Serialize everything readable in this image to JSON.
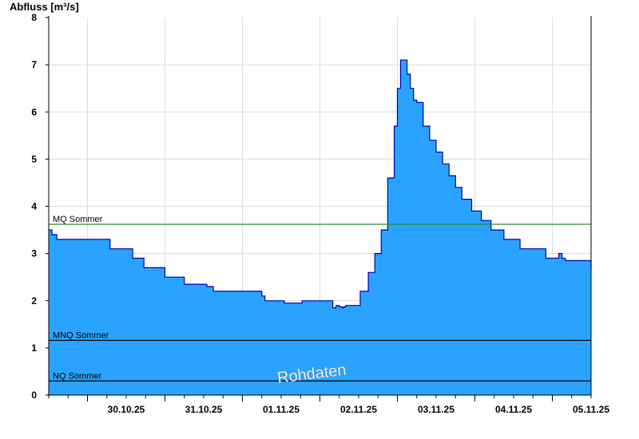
{
  "chart_data": {
    "type": "area",
    "ylabel": "Abfluss [m³/s]",
    "ylim": [
      0,
      8
    ],
    "yticks": [
      0,
      1,
      2,
      3,
      4,
      5,
      6,
      7,
      8
    ],
    "xlim": [
      "29.10.25 12:00",
      "05.11.25 12:00"
    ],
    "xtick_labels": [
      "30.10.25",
      "31.10.25",
      "01.11.25",
      "02.11.25",
      "03.11.25",
      "04.11.25",
      "05.11.25"
    ],
    "fill_color": "#29a3ff",
    "line_color": "#0000b0",
    "grid": true,
    "watermark": "Rohdaten",
    "reference_lines": [
      {
        "label": "MQ Sommer",
        "value": 3.62,
        "color": "#2e8b2e"
      },
      {
        "label": "MNQ Sommer",
        "value": 1.16,
        "color": "#000000"
      },
      {
        "label": "NQ Sommer",
        "value": 0.3,
        "color": "#000000"
      }
    ],
    "series": [
      {
        "x": [
          "29.10.25 12:00",
          "29.10.25 13:00",
          "29.10.25 14:30",
          "30.10.25 07:00",
          "30.10.25 14:00",
          "30.10.25 17:30",
          "31.10.25 00:00",
          "31.10.25 06:00",
          "31.10.25 13:00",
          "31.10.25 15:00",
          "01.11.25 06:00",
          "01.11.25 07:00",
          "01.11.25 13:00",
          "01.11.25 18:30",
          "02.11.25 04:00",
          "02.11.25 05:00",
          "02.11.25 06:00",
          "02.11.25 07:00",
          "02.11.25 07:30",
          "02.11.25 08:00",
          "02.11.25 12:30",
          "02.11.25 15:00",
          "02.11.25 17:00",
          "02.11.25 19:00",
          "02.11.25 21:00",
          "02.11.25 23:00",
          "03.11.25 00:00",
          "03.11.25 01:00",
          "03.11.25 02:00",
          "03.11.25 03:00",
          "03.11.25 04:00",
          "03.11.25 05:00",
          "03.11.25 06:00",
          "03.11.25 08:00",
          "03.11.25 10:00",
          "03.11.25 12:00",
          "03.11.25 14:00",
          "03.11.25 16:00",
          "03.11.25 18:00",
          "03.11.25 20:00",
          "03.11.25 23:00",
          "04.11.25 02:00",
          "04.11.25 05:00",
          "04.11.25 09:00",
          "04.11.25 14:00",
          "04.11.25 22:00",
          "05.11.25 02:00",
          "05.11.25 03:00",
          "05.11.25 04:00",
          "05.11.25 12:00"
        ],
        "y": [
          3.5,
          3.4,
          3.3,
          3.1,
          2.9,
          2.7,
          2.5,
          2.35,
          2.3,
          2.2,
          2.1,
          2.0,
          1.95,
          2.0,
          1.85,
          1.9,
          1.87,
          1.85,
          1.87,
          1.9,
          2.2,
          2.6,
          3.0,
          3.5,
          4.6,
          5.7,
          6.5,
          7.1,
          7.1,
          6.8,
          6.5,
          6.25,
          6.2,
          5.7,
          5.4,
          5.15,
          4.9,
          4.65,
          4.4,
          4.15,
          3.9,
          3.7,
          3.5,
          3.3,
          3.1,
          2.9,
          3.0,
          2.9,
          2.85,
          2.7
        ]
      }
    ]
  }
}
